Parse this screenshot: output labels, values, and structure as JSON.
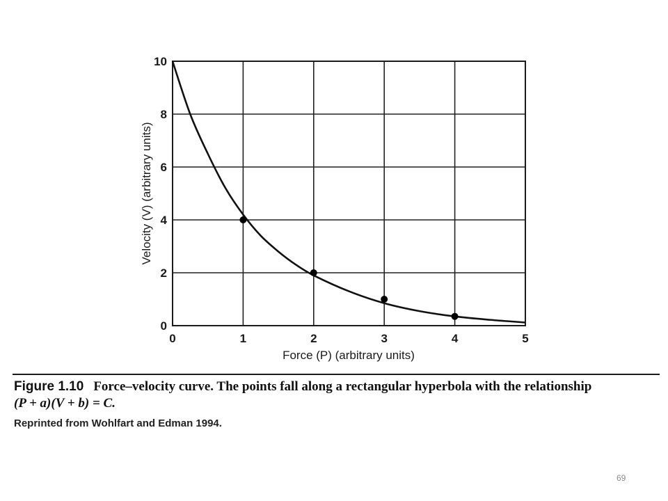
{
  "chart_data": {
    "type": "scatter",
    "xlabel": "Force (P) (arbitrary units)",
    "ylabel": "Velocity (V) (arbitrary units)",
    "xlim": [
      0,
      5
    ],
    "ylim": [
      0,
      10
    ],
    "x_ticks": [
      0,
      1,
      2,
      3,
      4,
      5
    ],
    "y_ticks": [
      0,
      2,
      4,
      6,
      8,
      10
    ],
    "grid": true,
    "points": {
      "x": [
        1,
        2,
        3,
        4
      ],
      "y": [
        4.0,
        2.0,
        1.0,
        0.35
      ]
    },
    "curve": {
      "x": [
        0,
        0.25,
        0.5,
        0.75,
        1.0,
        1.25,
        1.5,
        1.75,
        2.0,
        2.5,
        3.0,
        3.5,
        4.0,
        4.5,
        5.0
      ],
      "y": [
        10.0,
        8.0,
        6.5,
        5.2,
        4.2,
        3.4,
        2.8,
        2.3,
        1.9,
        1.3,
        0.85,
        0.55,
        0.35,
        0.22,
        0.12
      ]
    }
  },
  "caption": {
    "figure_label": "Figure 1.10",
    "text": "Force–velocity curve. The points fall along a rectangular hyperbola with the relationship",
    "equation": "(P + a)(V + b) = C."
  },
  "credit": "Reprinted from Wohlfart and Edman 1994.",
  "page_number": "69"
}
